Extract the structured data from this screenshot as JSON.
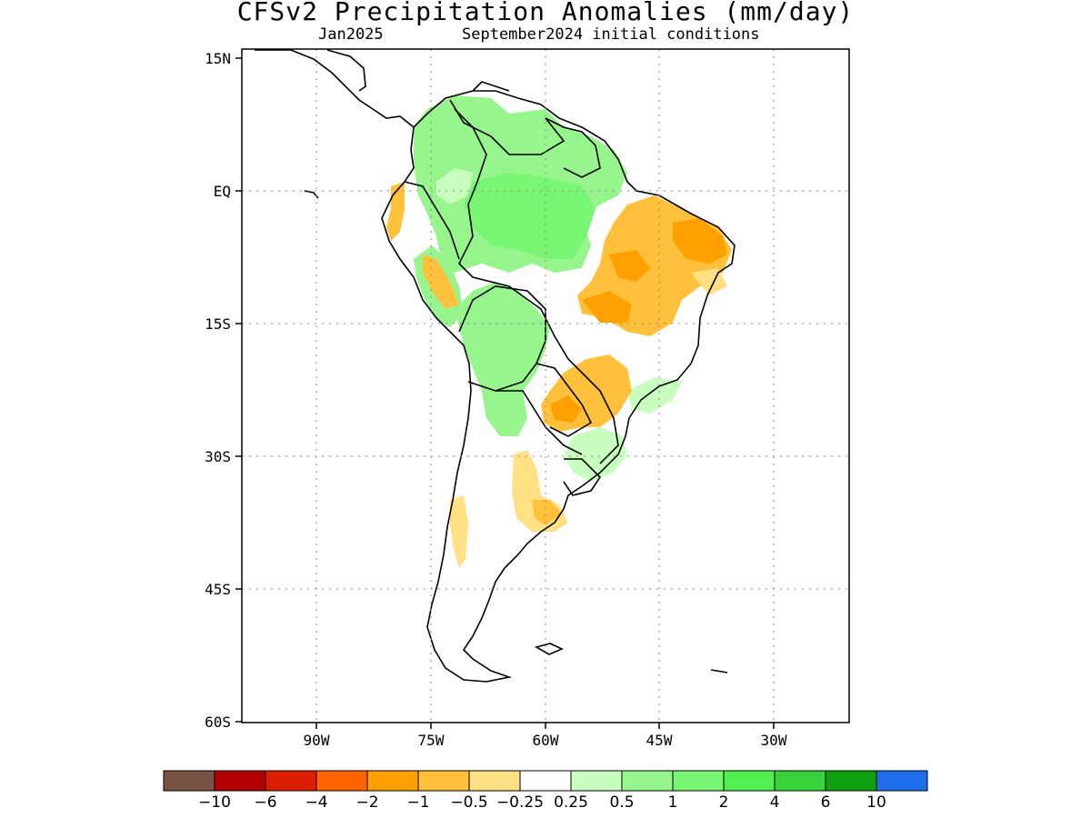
{
  "title": "CFSv2 Precipitation Anomalies (mm/day)",
  "subtitle_month": "Jan2025",
  "subtitle_init": "September2024 initial conditions",
  "map": {
    "lat_labels": [
      "15N",
      "EQ",
      "15S",
      "30S",
      "45S",
      "60S"
    ],
    "lon_labels": [
      "90W",
      "75W",
      "60W",
      "45W",
      "30W"
    ],
    "lat_range": [
      -60,
      15
    ],
    "lon_range": [
      -100,
      -20
    ],
    "grid": true
  },
  "colorbar": {
    "colors": [
      "#7a5243",
      "#b40000",
      "#dc1e00",
      "#ff6400",
      "#ffa000",
      "#ffc03c",
      "#ffe082",
      "#ffffff",
      "#c8ffbe",
      "#96f58c",
      "#78f573",
      "#50f050",
      "#37d23c",
      "#0fa00f",
      "#1e6eeb"
    ],
    "labels": [
      "−10",
      "−6",
      "−4",
      "−2",
      "−1",
      "−0.5",
      "−0.25",
      "0.25",
      "0.5",
      "1",
      "2",
      "4",
      "6",
      "10"
    ]
  },
  "regions": [
    {
      "name": "NE Brazil dry anomaly",
      "value": -0.75
    },
    {
      "name": "Central Brazil dry anomaly",
      "value": -0.75
    },
    {
      "name": "Paraguay dry anomaly",
      "value": -0.75
    },
    {
      "name": "Argentina dry anomaly",
      "value": -0.4
    },
    {
      "name": "Peru dry anomaly",
      "value": -0.75
    },
    {
      "name": "Amazon wet anomaly",
      "value": 0.75
    },
    {
      "name": "Bolivia wet anomaly",
      "value": 0.75
    },
    {
      "name": "Colombia wet anomaly",
      "value": 0.75
    }
  ]
}
